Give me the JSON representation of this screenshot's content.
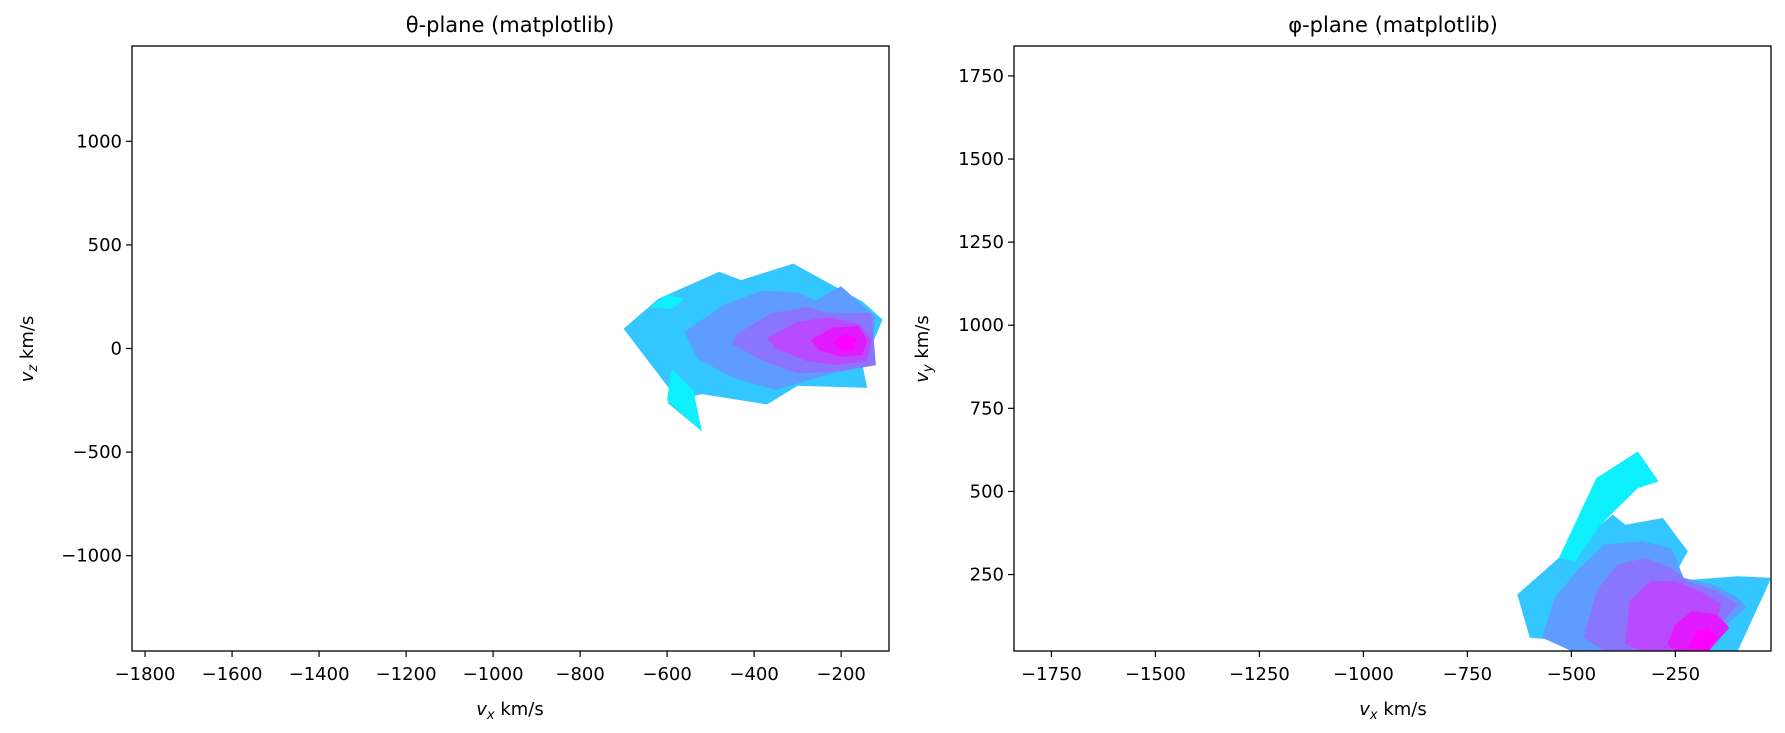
{
  "chart_data": [
    {
      "type": "contour",
      "title": "θ-plane (matplotlib)",
      "xlabel": {
        "var": "v",
        "sub": "x",
        "unit": " km/s"
      },
      "ylabel": {
        "var": "v",
        "sub": "z",
        "unit": " km/s"
      },
      "xlim": [
        -1830,
        -90
      ],
      "ylim": [
        -1460,
        1460
      ],
      "xticks": [
        -1800,
        -1600,
        -1400,
        -1200,
        -1000,
        -800,
        -600,
        -400,
        -200
      ],
      "yticks": [
        -1000,
        -500,
        0,
        500,
        1000
      ],
      "level_colors": [
        "#0ff0ff",
        "#33c6ff",
        "#5e9cff",
        "#8a75ff",
        "#b84bff",
        "#e01cff",
        "#ff00ff"
      ],
      "regions": [
        {
          "level": 1,
          "polygon": [
            [
              -700,
              95
            ],
            [
              -620,
              240
            ],
            [
              -480,
              370
            ],
            [
              -430,
              330
            ],
            [
              -310,
              410
            ],
            [
              -150,
              225
            ],
            [
              -105,
              140
            ],
            [
              -150,
              -90
            ],
            [
              -140,
              -190
            ],
            [
              -300,
              -180
            ],
            [
              -370,
              -270
            ],
            [
              -520,
              -220
            ],
            [
              -600,
              -260
            ],
            [
              -520,
              -400
            ]
          ]
        },
        {
          "level": 0,
          "polygon": [
            [
              -640,
              200
            ],
            [
              -600,
              260
            ],
            [
              -560,
              240
            ],
            [
              -590,
              190
            ]
          ]
        },
        {
          "level": 0,
          "polygon": [
            [
              -600,
              -250
            ],
            [
              -520,
              -400
            ],
            [
              -540,
              -200
            ],
            [
              -590,
              -100
            ]
          ]
        },
        {
          "level": 2,
          "polygon": [
            [
              -560,
              80
            ],
            [
              -470,
              210
            ],
            [
              -380,
              280
            ],
            [
              -300,
              270
            ],
            [
              -260,
              230
            ],
            [
              -200,
              300
            ],
            [
              -120,
              150
            ],
            [
              -140,
              -70
            ],
            [
              -270,
              -150
            ],
            [
              -350,
              -200
            ],
            [
              -450,
              -140
            ],
            [
              -530,
              -50
            ]
          ]
        },
        {
          "level": 3,
          "polygon": [
            [
              -440,
              70
            ],
            [
              -360,
              170
            ],
            [
              -280,
              200
            ],
            [
              -220,
              170
            ],
            [
              -130,
              170
            ],
            [
              -120,
              -80
            ],
            [
              -200,
              -110
            ],
            [
              -300,
              -120
            ],
            [
              -380,
              -60
            ],
            [
              -450,
              20
            ]
          ]
        },
        {
          "level": 4,
          "polygon": [
            [
              -370,
              50
            ],
            [
              -300,
              130
            ],
            [
              -230,
              150
            ],
            [
              -160,
              120
            ],
            [
              -130,
              40
            ],
            [
              -140,
              -60
            ],
            [
              -210,
              -80
            ],
            [
              -280,
              -60
            ],
            [
              -350,
              0
            ]
          ]
        },
        {
          "level": 5,
          "polygon": [
            [
              -270,
              40
            ],
            [
              -220,
              100
            ],
            [
              -160,
              110
            ],
            [
              -140,
              40
            ],
            [
              -150,
              -30
            ],
            [
              -200,
              -40
            ],
            [
              -250,
              -10
            ]
          ]
        },
        {
          "level": 6,
          "polygon": [
            [
              -220,
              30
            ],
            [
              -190,
              70
            ],
            [
              -165,
              50
            ],
            [
              -170,
              -5
            ],
            [
              -195,
              -10
            ]
          ]
        }
      ]
    },
    {
      "type": "contour",
      "title": "φ-plane (matplotlib)",
      "xlabel": {
        "var": "v",
        "sub": "x",
        "unit": " km/s"
      },
      "ylabel": {
        "var": "v",
        "sub": "y",
        "unit": " km/s"
      },
      "xlim": [
        -1840,
        -20
      ],
      "ylim": [
        20,
        1840
      ],
      "xticks": [
        -1750,
        -1500,
        -1250,
        -1000,
        -750,
        -500,
        -250
      ],
      "yticks": [
        250,
        500,
        750,
        1000,
        1250,
        1500,
        1750
      ],
      "level_colors": [
        "#0ff0ff",
        "#33c6ff",
        "#5e9cff",
        "#8a75ff",
        "#b84bff",
        "#e01cff",
        "#ff00ff"
      ],
      "regions": [
        {
          "level": 1,
          "polygon": [
            [
              -630,
              190
            ],
            [
              -600,
              60
            ],
            [
              -200,
              20
            ],
            [
              -100,
              20
            ],
            [
              -30,
              210
            ],
            [
              -20,
              240
            ],
            [
              -100,
              245
            ],
            [
              -260,
              230
            ],
            [
              -220,
              320
            ],
            [
              -280,
              420
            ],
            [
              -370,
              400
            ],
            [
              -400,
              430
            ],
            [
              -480,
              350
            ],
            [
              -530,
              300
            ]
          ]
        },
        {
          "level": 0,
          "polygon": [
            [
              -530,
              300
            ],
            [
              -440,
              540
            ],
            [
              -340,
              620
            ],
            [
              -290,
              530
            ],
            [
              -340,
              510
            ],
            [
              -430,
              400
            ],
            [
              -490,
              290
            ]
          ]
        },
        {
          "level": 2,
          "polygon": [
            [
              -570,
              60
            ],
            [
              -540,
              180
            ],
            [
              -480,
              270
            ],
            [
              -420,
              340
            ],
            [
              -330,
              350
            ],
            [
              -260,
              330
            ],
            [
              -230,
              240
            ],
            [
              -160,
              220
            ],
            [
              -100,
              180
            ],
            [
              -80,
              150
            ],
            [
              -200,
              20
            ],
            [
              -500,
              20
            ]
          ]
        },
        {
          "level": 3,
          "polygon": [
            [
              -470,
              60
            ],
            [
              -440,
              200
            ],
            [
              -390,
              280
            ],
            [
              -320,
              300
            ],
            [
              -260,
              270
            ],
            [
              -220,
              230
            ],
            [
              -150,
              200
            ],
            [
              -100,
              160
            ],
            [
              -200,
              20
            ],
            [
              -420,
              20
            ]
          ]
        },
        {
          "level": 4,
          "polygon": [
            [
              -370,
              40
            ],
            [
              -360,
              170
            ],
            [
              -310,
              230
            ],
            [
              -250,
              230
            ],
            [
              -190,
              200
            ],
            [
              -140,
              160
            ],
            [
              -170,
              20
            ],
            [
              -330,
              20
            ]
          ]
        },
        {
          "level": 5,
          "polygon": [
            [
              -270,
              40
            ],
            [
              -250,
              100
            ],
            [
              -210,
              140
            ],
            [
              -150,
              130
            ],
            [
              -120,
              90
            ],
            [
              -170,
              20
            ],
            [
              -250,
              20
            ]
          ]
        },
        {
          "level": 6,
          "polygon": [
            [
              -220,
              30
            ],
            [
              -200,
              80
            ],
            [
              -170,
              90
            ],
            [
              -150,
              60
            ],
            [
              -170,
              20
            ]
          ]
        }
      ]
    }
  ]
}
